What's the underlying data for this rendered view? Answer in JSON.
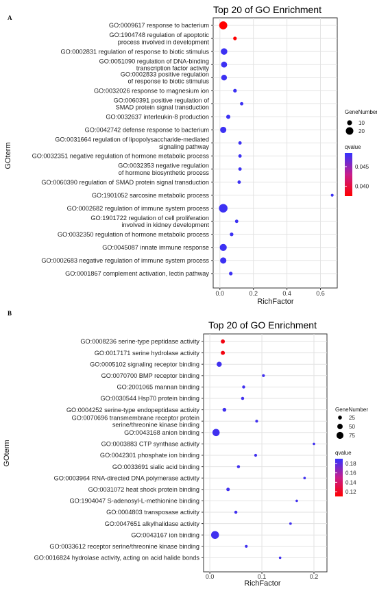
{
  "chart_data": [
    {
      "panel": "A",
      "type": "scatter",
      "title": "Top 20 of GO Enrichment",
      "xlabel": "RichFactor",
      "ylabel": "GOterm",
      "xlim": [
        -0.04,
        0.7
      ],
      "xticks": [
        "0.0",
        "0.2",
        "0.4",
        "0.6"
      ],
      "grid": true,
      "legend_position": "right",
      "size_legend": {
        "title": "GeneNumber",
        "values": [
          "10",
          "20"
        ]
      },
      "color_legend": {
        "title": "qvalue",
        "ticks": [
          "0.045",
          "0.040"
        ],
        "low_color": "#ff0000",
        "high_color": "#3333ff"
      },
      "terms": [
        {
          "label": [
            "GO:0009617 response to bacterium"
          ],
          "x": 0.02,
          "genes": 22,
          "q": 0.037
        },
        {
          "label": [
            "GO:1904748 regulation of apoptotic",
            "process involved in development"
          ],
          "x": 0.09,
          "genes": 5,
          "q": 0.037
        },
        {
          "label": [
            "GO:0002831 regulation of response to biotic stimulus"
          ],
          "x": 0.025,
          "genes": 16,
          "q": 0.048
        },
        {
          "label": [
            "GO:0051090 regulation of DNA-binding",
            "transcription factor activity"
          ],
          "x": 0.025,
          "genes": 14,
          "q": 0.048
        },
        {
          "label": [
            "GO:0002833 positive regulation",
            "of response to biotic stimulus"
          ],
          "x": 0.025,
          "genes": 13,
          "q": 0.048
        },
        {
          "label": [
            "GO:0032026 response to magnesium ion"
          ],
          "x": 0.09,
          "genes": 5,
          "q": 0.048
        },
        {
          "label": [
            "GO:0060391 positive regulation of",
            "SMAD protein signal transduction"
          ],
          "x": 0.13,
          "genes": 4,
          "q": 0.048
        },
        {
          "label": [
            "GO:0032637 interleukin-8 production"
          ],
          "x": 0.05,
          "genes": 7,
          "q": 0.048
        },
        {
          "label": [
            "GO:0042742 defense response to bacterium"
          ],
          "x": 0.02,
          "genes": 15,
          "q": 0.048
        },
        {
          "label": [
            "GO:0031664 regulation of lipopolysaccharide-mediated",
            "signaling pathway"
          ],
          "x": 0.12,
          "genes": 4,
          "q": 0.048
        },
        {
          "label": [
            "GO:0032351 negative regulation of hormone metabolic process"
          ],
          "x": 0.12,
          "genes": 4,
          "q": 0.048
        },
        {
          "label": [
            "GO:0032353 negative regulation",
            "of hormone biosynthetic process"
          ],
          "x": 0.12,
          "genes": 4,
          "q": 0.048
        },
        {
          "label": [
            "GO:0060390 regulation of SMAD protein signal transduction"
          ],
          "x": 0.115,
          "genes": 4,
          "q": 0.048
        },
        {
          "label": [
            "GO:1901052 sarcosine metabolic process"
          ],
          "x": 0.67,
          "genes": 2,
          "q": 0.048
        },
        {
          "label": [
            "GO:0002682 regulation of immune system process"
          ],
          "x": 0.02,
          "genes": 24,
          "q": 0.048
        },
        {
          "label": [
            "GO:1901722 regulation of cell proliferation",
            "involved in kidney development"
          ],
          "x": 0.1,
          "genes": 4,
          "q": 0.048
        },
        {
          "label": [
            "GO:0032350 regulation of hormone metabolic process"
          ],
          "x": 0.07,
          "genes": 5,
          "q": 0.048
        },
        {
          "label": [
            "GO:0045087 innate immune response"
          ],
          "x": 0.02,
          "genes": 18,
          "q": 0.048
        },
        {
          "label": [
            "GO:0002683 negative regulation of immune system process"
          ],
          "x": 0.02,
          "genes": 15,
          "q": 0.048
        },
        {
          "label": [
            "GO:0001867 complement activation, lectin pathway"
          ],
          "x": 0.065,
          "genes": 5,
          "q": 0.048
        }
      ]
    },
    {
      "panel": "B",
      "type": "scatter",
      "title": "Top 20 of GO Enrichment",
      "xlabel": "RichFactor",
      "ylabel": "GOterm",
      "xlim": [
        -0.012,
        0.225
      ],
      "xticks": [
        "0.0",
        "0.1",
        "0.2"
      ],
      "grid": true,
      "legend_position": "right",
      "size_legend": {
        "title": "GeneNumber",
        "values": [
          "25",
          "50",
          "75"
        ]
      },
      "color_legend": {
        "title": "qvalue",
        "ticks": [
          "0.18",
          "0.16",
          "0.14",
          "0.12"
        ],
        "low_color": "#ff0000",
        "high_color": "#3333ff"
      },
      "terms": [
        {
          "label": [
            "GO:0008236 serine-type peptidase activity"
          ],
          "x": 0.025,
          "genes": 28,
          "q": 0.115
        },
        {
          "label": [
            "GO:0017171 serine hydrolase activity"
          ],
          "x": 0.025,
          "genes": 28,
          "q": 0.115
        },
        {
          "label": [
            "GO:0005102 signaling receptor binding"
          ],
          "x": 0.018,
          "genes": 45,
          "q": 0.185
        },
        {
          "label": [
            "GO:0070700 BMP receptor binding"
          ],
          "x": 0.103,
          "genes": 9,
          "q": 0.185
        },
        {
          "label": [
            "GO:2001065 mannan binding"
          ],
          "x": 0.065,
          "genes": 12,
          "q": 0.185
        },
        {
          "label": [
            "GO:0030544 Hsp70 protein binding"
          ],
          "x": 0.063,
          "genes": 12,
          "q": 0.185
        },
        {
          "label": [
            "GO:0004252 serine-type endopeptidase activity"
          ],
          "x": 0.028,
          "genes": 24,
          "q": 0.185
        },
        {
          "label": [
            "GO:0070696 transmembrane receptor protein",
            "serine/threonine kinase binding"
          ],
          "x": 0.09,
          "genes": 9,
          "q": 0.185
        },
        {
          "label": [
            "GO:0043168 anion binding"
          ],
          "x": 0.012,
          "genes": 80,
          "q": 0.185
        },
        {
          "label": [
            "GO:0003883 CTP synthase activity"
          ],
          "x": 0.2,
          "genes": 3,
          "q": 0.185
        },
        {
          "label": [
            "GO:0042301 phosphate ion binding"
          ],
          "x": 0.088,
          "genes": 9,
          "q": 0.185
        },
        {
          "label": [
            "GO:0033691 sialic acid binding"
          ],
          "x": 0.055,
          "genes": 12,
          "q": 0.185
        },
        {
          "label": [
            "GO:0003964 RNA-directed DNA polymerase activity"
          ],
          "x": 0.182,
          "genes": 3,
          "q": 0.185
        },
        {
          "label": [
            "GO:0031072 heat shock protein binding"
          ],
          "x": 0.035,
          "genes": 18,
          "q": 0.185
        },
        {
          "label": [
            "GO:1904047 S-adenosyl-L-methionine binding"
          ],
          "x": 0.167,
          "genes": 3,
          "q": 0.185
        },
        {
          "label": [
            "GO:0004803 transposase activity"
          ],
          "x": 0.05,
          "genes": 12,
          "q": 0.185
        },
        {
          "label": [
            "GO:0047651 alkylhalidase activity"
          ],
          "x": 0.155,
          "genes": 3,
          "q": 0.185
        },
        {
          "label": [
            "GO:0043167 ion binding"
          ],
          "x": 0.01,
          "genes": 90,
          "q": 0.185
        },
        {
          "label": [
            "GO:0033612 receptor serine/threonine kinase binding"
          ],
          "x": 0.07,
          "genes": 9,
          "q": 0.185
        },
        {
          "label": [
            "GO:0016824 hydrolase activity, acting on acid halide bonds"
          ],
          "x": 0.135,
          "genes": 3,
          "q": 0.185
        }
      ]
    }
  ]
}
